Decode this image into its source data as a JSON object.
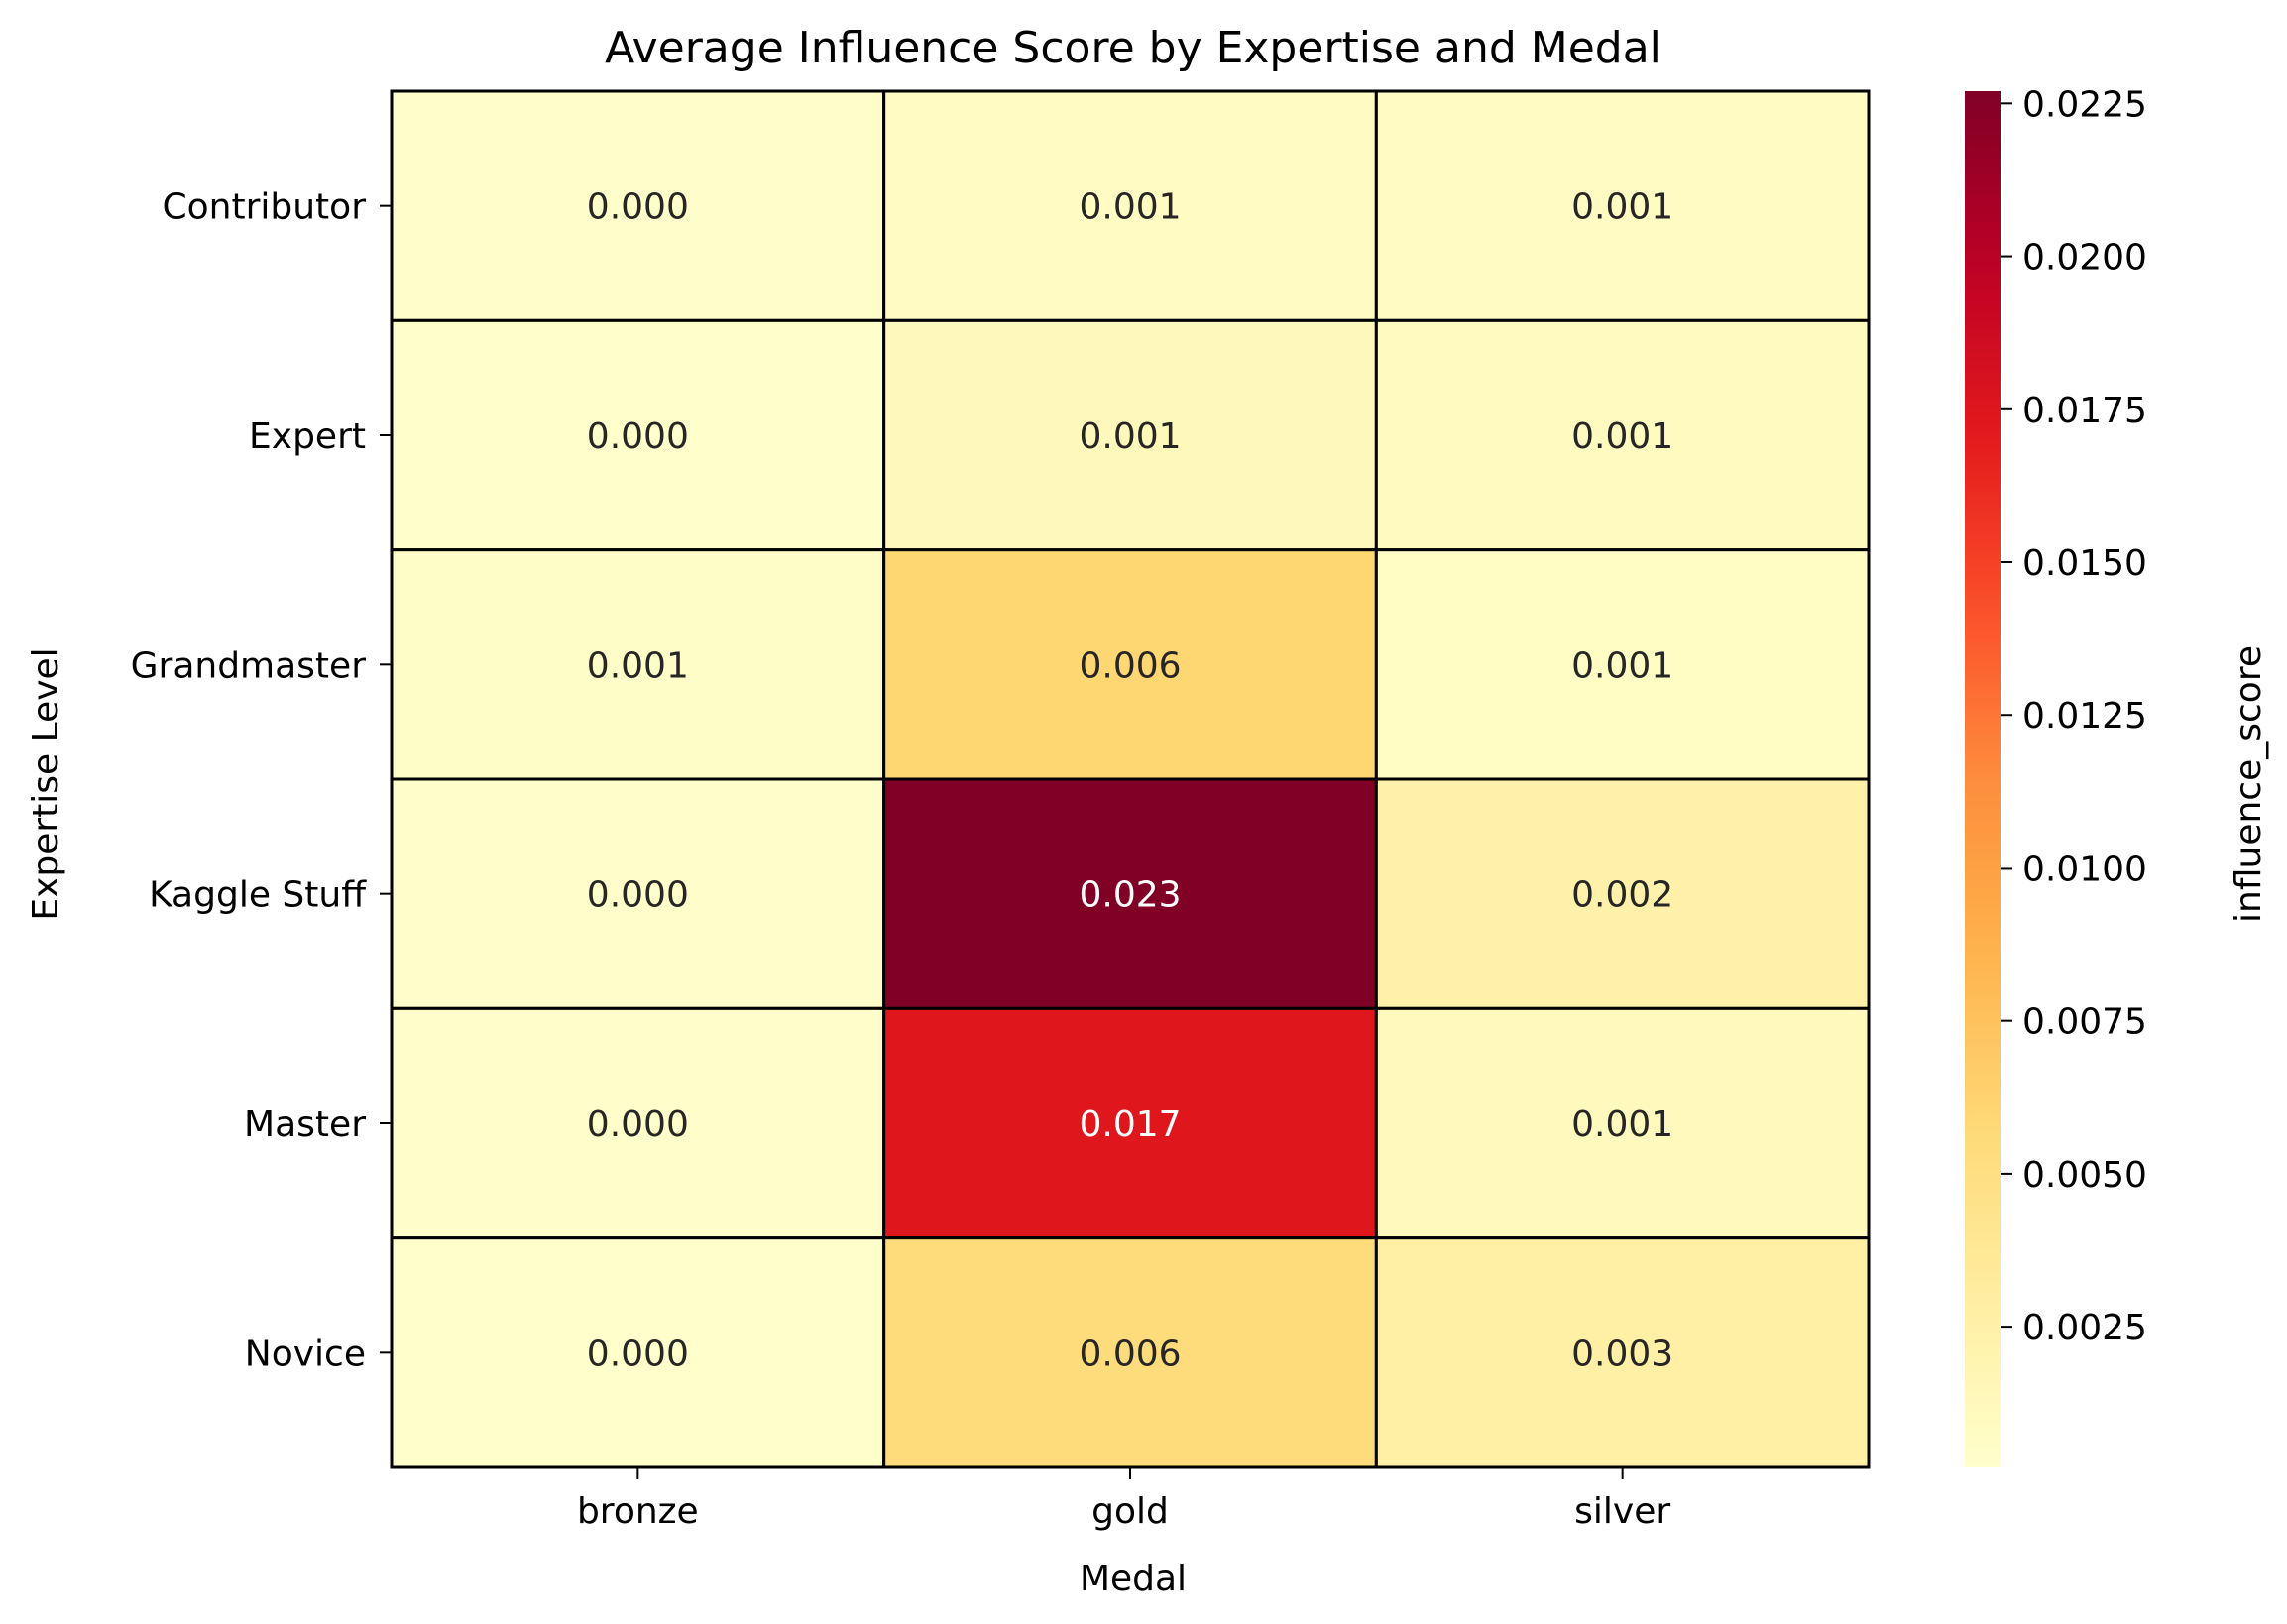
{
  "chart_data": {
    "type": "heatmap",
    "title": "Average Influence Score by Expertise and Medal",
    "xlabel": "Medal",
    "ylabel": "Expertise Level",
    "x_categories": [
      "bronze",
      "gold",
      "silver"
    ],
    "y_categories": [
      "Contributor",
      "Expert",
      "Grandmaster",
      "Kaggle Stuff",
      "Master",
      "Novice"
    ],
    "values": [
      [
        0.0003,
        0.0008,
        0.0008
      ],
      [
        0.0002,
        0.0013,
        0.001
      ],
      [
        0.0005,
        0.006,
        0.0007
      ],
      [
        0.0003,
        0.0227,
        0.0024
      ],
      [
        0.0003,
        0.0174,
        0.0011
      ],
      [
        0.0002,
        0.0055,
        0.0026
      ]
    ],
    "cell_labels": [
      [
        "0.000",
        "0.001",
        "0.001"
      ],
      [
        "0.000",
        "0.001",
        "0.001"
      ],
      [
        "0.001",
        "0.006",
        "0.001"
      ],
      [
        "0.000",
        "0.023",
        "0.002"
      ],
      [
        "0.000",
        "0.017",
        "0.001"
      ],
      [
        "0.000",
        "0.006",
        "0.003"
      ]
    ],
    "colormap": "YlOrRd",
    "colorbar": {
      "label": "influence_score",
      "vmin": 0.0002,
      "vmax": 0.0227,
      "ticks": [
        0.0025,
        0.005,
        0.0075,
        0.01,
        0.0125,
        0.015,
        0.0175,
        0.02,
        0.0225
      ],
      "tick_labels": [
        "0.0025",
        "0.0050",
        "0.0075",
        "0.0100",
        "0.0125",
        "0.0150",
        "0.0175",
        "0.0200",
        "0.0225"
      ]
    },
    "colors": {
      "cell_border": "#000000",
      "text_dark": "#262626",
      "text_light": "#ffffff"
    }
  }
}
